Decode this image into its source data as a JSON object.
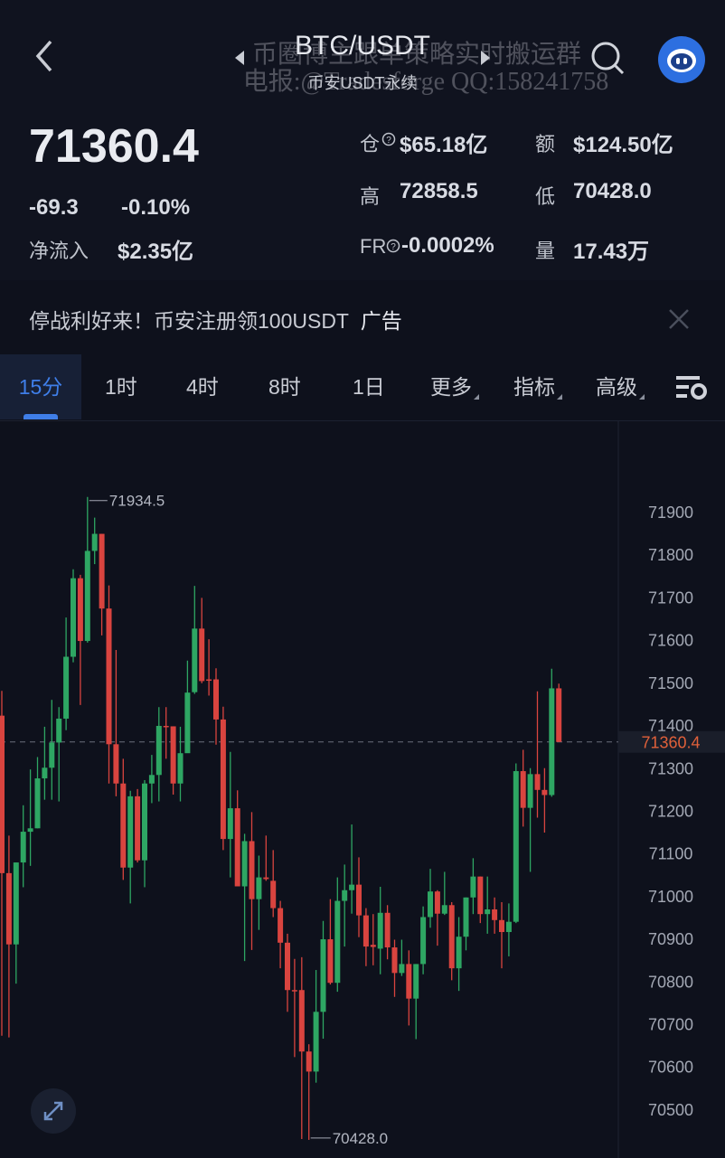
{
  "header": {
    "title": "BTC/USDT",
    "subtitle": "币安USDT永续",
    "watermark_line1": "币圈博主跟单策略实时搬运群",
    "watermark_line2": "电报:@Tradesforge QQ:158241758"
  },
  "ticker": {
    "last_price": "71360.4",
    "change": "-69.3",
    "change_pct": "-0.10%",
    "net_inflow_label": "净流入",
    "net_inflow": "$2.35亿",
    "open_interest_label": "仓",
    "open_interest": "$65.18亿",
    "turnover_label": "额",
    "turnover": "$124.50亿",
    "high_label": "高",
    "high": "72858.5",
    "low_label": "低",
    "low": "70428.0",
    "funding_label": "FR",
    "funding": "-0.0002%",
    "volume_label": "量",
    "volume": "17.43万"
  },
  "ad": {
    "text": "停战利好来！币安注册领100USDT",
    "tag": "广告"
  },
  "tabs": [
    {
      "label": "15分",
      "selected": true
    },
    {
      "label": "1时"
    },
    {
      "label": "4时"
    },
    {
      "label": "8时"
    },
    {
      "label": "1日"
    },
    {
      "label": "更多",
      "dropdown": true
    },
    {
      "label": "指标",
      "dropdown": true
    },
    {
      "label": "高级",
      "dropdown": true
    }
  ],
  "colors": {
    "up": "#2ea663",
    "down": "#d9443f",
    "accent": "#3f7ee8",
    "last_price": "#e0603a"
  },
  "chart_data": {
    "type": "candlestick",
    "interval": "15分",
    "ylim": [
      70400,
      72000
    ],
    "y_ticks": [
      71900,
      71800,
      71700,
      71600,
      71500,
      71400,
      71300,
      71200,
      71100,
      71000,
      70900,
      70800,
      70700,
      70600,
      70500
    ],
    "last_price": 71360.4,
    "last_price_label": "71360.4",
    "max_label": "71934.5",
    "min_label": "70428.0",
    "candles_ohlc": [
      [
        71422,
        71480,
        70672,
        71053
      ],
      [
        71053,
        71141,
        70668,
        70886
      ],
      [
        70886,
        71078,
        70794,
        71078
      ],
      [
        71078,
        71212,
        71020,
        71150
      ],
      [
        71150,
        71296,
        71070,
        71158
      ],
      [
        71158,
        71325,
        71158,
        71275
      ],
      [
        71275,
        71396,
        71225,
        71300
      ],
      [
        71300,
        71459,
        71225,
        71359
      ],
      [
        71359,
        71442,
        71221,
        71415
      ],
      [
        71415,
        71652,
        71388,
        71560
      ],
      [
        71560,
        71765,
        71547,
        71744
      ],
      [
        71744,
        71752,
        71447,
        71597
      ],
      [
        71597,
        71934.5,
        71593,
        71808
      ],
      [
        71808,
        71886,
        71777,
        71848
      ],
      [
        71848,
        71848,
        71610,
        71673
      ],
      [
        71673,
        71727,
        71263,
        71355
      ],
      [
        71355,
        71576,
        71233,
        71263
      ],
      [
        71263,
        71321,
        71037,
        71066
      ],
      [
        71066,
        71246,
        70982,
        71233
      ],
      [
        71233,
        71250,
        71078,
        71083
      ],
      [
        71083,
        71271,
        71020,
        71263
      ],
      [
        71263,
        71330,
        71217,
        71283
      ],
      [
        71283,
        71442,
        71221,
        71398
      ],
      [
        71398,
        71442,
        71321,
        71397
      ],
      [
        71397,
        71397,
        71237,
        71263
      ],
      [
        71263,
        71396,
        71221,
        71334
      ],
      [
        71334,
        71551,
        71388,
        71476
      ],
      [
        71477,
        71726,
        71473,
        71626
      ],
      [
        71626,
        71698,
        71498,
        71503
      ],
      [
        71507,
        71601,
        71469,
        71504
      ],
      [
        71507,
        71533,
        71354,
        71413
      ],
      [
        71413,
        71443,
        71107,
        71133
      ],
      [
        71133,
        71337,
        71043,
        71205
      ],
      [
        71205,
        71247,
        71022,
        71022
      ],
      [
        71022,
        71145,
        70847,
        71128
      ],
      [
        71128,
        71196,
        70873,
        70992
      ],
      [
        70992,
        71094,
        70920,
        71043
      ],
      [
        71043,
        71141,
        71035,
        71039
      ],
      [
        71035,
        71107,
        70950,
        70971
      ],
      [
        70971,
        70988,
        70830,
        70890
      ],
      [
        70890,
        70911,
        70728,
        70779
      ],
      [
        70779,
        70852,
        70622,
        70778
      ],
      [
        70779,
        70856,
        70430,
        70635
      ],
      [
        70635,
        70652,
        70428.0,
        70588
      ],
      [
        70588,
        70826,
        70562,
        70728
      ],
      [
        70728,
        70941,
        70665,
        70898
      ],
      [
        70898,
        70992,
        70792,
        70796
      ],
      [
        70796,
        71043,
        70775,
        70988
      ],
      [
        70988,
        71073,
        70881,
        71013
      ],
      [
        71013,
        71167,
        70958,
        71026
      ],
      [
        71026,
        71090,
        70903,
        70954
      ],
      [
        70954,
        70971,
        70835,
        70881
      ],
      [
        70885,
        70957,
        70837,
        70880
      ],
      [
        70876,
        71021,
        70816,
        70960
      ],
      [
        70960,
        70978,
        70851,
        70879
      ],
      [
        70879,
        70897,
        70763,
        70819
      ],
      [
        70819,
        70897,
        70812,
        70840
      ],
      [
        70840,
        70872,
        70696,
        70759
      ],
      [
        70759,
        70840,
        70664,
        70840
      ],
      [
        70840,
        70975,
        70816,
        70950
      ],
      [
        70950,
        71063,
        70925,
        71010
      ],
      [
        71010,
        71013,
        70883,
        70958
      ],
      [
        70958,
        71056,
        70955,
        70978
      ],
      [
        70978,
        70985,
        70802,
        70830
      ],
      [
        70830,
        70950,
        70777,
        70904
      ],
      [
        70904,
        70996,
        70872,
        70996
      ],
      [
        70996,
        71088,
        70957,
        71045
      ],
      [
        71045,
        71045,
        70936,
        70957
      ],
      [
        70957,
        71045,
        70911,
        70968
      ],
      [
        70968,
        70996,
        70911,
        70943
      ],
      [
        70943,
        70985,
        70830,
        70915
      ],
      [
        70915,
        70982,
        70858,
        70939
      ],
      [
        70939,
        71310,
        70936,
        71292
      ],
      [
        71292,
        71342,
        71162,
        71206
      ],
      [
        71206,
        71299,
        71056,
        71285
      ],
      [
        71285,
        71479,
        71183,
        71248
      ],
      [
        71248,
        71299,
        71148,
        71236
      ],
      [
        71236,
        71532,
        71232,
        71486
      ],
      [
        71486,
        71497,
        71360.4,
        71360.4
      ]
    ]
  }
}
